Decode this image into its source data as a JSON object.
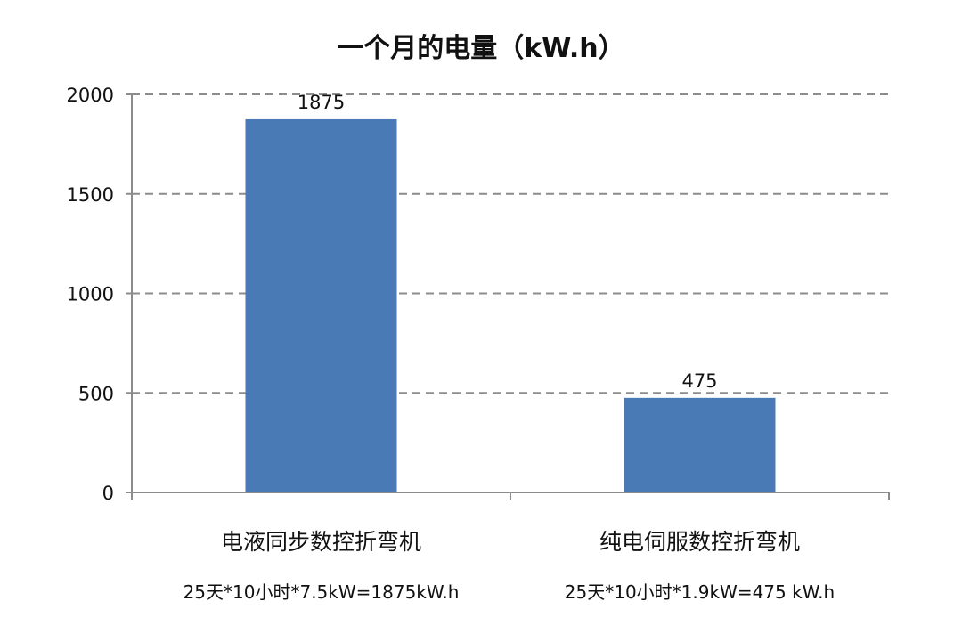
{
  "chart_data": {
    "type": "bar",
    "title": "一个月的电量（kW.h）",
    "categories": [
      "电液同步数控折弯机",
      "纯电伺服数控折弯机"
    ],
    "values": [
      1875,
      475
    ],
    "data_labels": [
      "1875",
      "475"
    ],
    "annotations": [
      "25天*10小时*7.5kW=1875kW.h",
      "25天*10小时*1.9kW=475 kW.h"
    ],
    "yticks": [
      0,
      500,
      1000,
      1500,
      2000
    ],
    "ytick_labels": [
      "0",
      "500",
      "1000",
      "1500",
      "2000"
    ],
    "ylim": [
      0,
      2000
    ],
    "xlabel": "",
    "ylabel": "",
    "grid": true,
    "grid_style": "dashed",
    "legend": "none",
    "bar_color": "#4a7ab5"
  }
}
